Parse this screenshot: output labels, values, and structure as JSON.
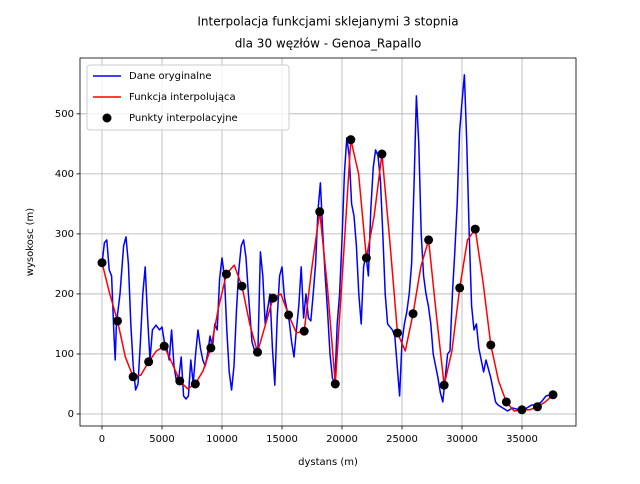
{
  "chart_data": {
    "type": "line",
    "title": [
      "Interpolacja funkcjami sklejanymi 3 stopnia",
      "dla 30 węzłów - Genoa_Rapallo"
    ],
    "x_label": "dystans (m)",
    "y_label": "wysokosc (m)",
    "xlim": [
      -1833,
      39500
    ],
    "ylim": [
      -20,
      593
    ],
    "xticks": [
      0,
      5000,
      10000,
      15000,
      20000,
      25000,
      30000,
      35000
    ],
    "yticks": [
      0,
      100,
      200,
      300,
      400,
      500
    ],
    "grid": true,
    "legend": "upper left",
    "series": [
      {
        "name": "Dane oryginalne",
        "color": "#0000ff",
        "style": "line",
        "x": [
          0,
          200,
          400,
          600,
          800,
          1000,
          1100,
          1200,
          1500,
          1800,
          2000,
          2200,
          2400,
          2600,
          2800,
          3000,
          3200,
          3400,
          3600,
          3800,
          4000,
          4200,
          4500,
          4800,
          5000,
          5200,
          5400,
          5600,
          5800,
          6000,
          6200,
          6400,
          6600,
          6800,
          7000,
          7200,
          7400,
          7600,
          7800,
          8000,
          8200,
          8400,
          8600,
          8800,
          9000,
          9200,
          9400,
          9600,
          9800,
          10000,
          10200,
          10400,
          10600,
          10800,
          11000,
          11200,
          11400,
          11600,
          11800,
          12000,
          12200,
          12500,
          12800,
          13000,
          13200,
          13400,
          13600,
          13800,
          14000,
          14200,
          14400,
          14600,
          14800,
          15000,
          15200,
          15400,
          15600,
          15800,
          16000,
          16200,
          16400,
          16600,
          16800,
          17000,
          17200,
          17400,
          17600,
          17800,
          18000,
          18200,
          18400,
          18600,
          18800,
          19000,
          19200,
          19400,
          19600,
          19800,
          20000,
          20200,
          20400,
          20600,
          20800,
          21000,
          21200,
          21400,
          21600,
          21800,
          22000,
          22200,
          22400,
          22600,
          22800,
          23000,
          23200,
          23400,
          23600,
          23800,
          24000,
          24200,
          24400,
          24600,
          24800,
          25000,
          25200,
          25400,
          25600,
          25800,
          26000,
          26200,
          26400,
          26600,
          26800,
          27000,
          27200,
          27400,
          27600,
          27800,
          28000,
          28200,
          28400,
          28600,
          28800,
          29000,
          29200,
          29400,
          29600,
          29800,
          30000,
          30200,
          30400,
          30600,
          30800,
          31000,
          31200,
          31400,
          31600,
          31800,
          32000,
          32200,
          32400,
          32600,
          32800,
          33000,
          33400,
          33800,
          34200,
          34600,
          35000,
          35400,
          35800,
          36200,
          36600,
          37000,
          37400,
          37600
        ],
        "values": [
          250,
          285,
          290,
          240,
          230,
          130,
          90,
          150,
          200,
          280,
          295,
          250,
          150,
          80,
          40,
          50,
          120,
          200,
          245,
          160,
          90,
          140,
          148,
          140,
          145,
          120,
          110,
          90,
          140,
          80,
          55,
          60,
          95,
          30,
          25,
          30,
          90,
          50,
          100,
          140,
          110,
          90,
          80,
          100,
          130,
          110,
          150,
          140,
          225,
          260,
          230,
          140,
          70,
          40,
          80,
          170,
          240,
          280,
          290,
          260,
          200,
          120,
          100,
          110,
          270,
          230,
          150,
          175,
          200,
          110,
          48,
          160,
          230,
          245,
          195,
          175,
          155,
          120,
          95,
          140,
          180,
          245,
          160,
          200,
          160,
          155,
          200,
          250,
          340,
          385,
          300,
          230,
          170,
          100,
          60,
          50,
          150,
          200,
          290,
          400,
          460,
          430,
          350,
          330,
          280,
          200,
          150,
          245,
          265,
          230,
          340,
          410,
          440,
          430,
          390,
          300,
          200,
          150,
          145,
          140,
          130,
          80,
          30,
          120,
          150,
          170,
          200,
          250,
          380,
          530,
          450,
          300,
          230,
          200,
          180,
          150,
          100,
          80,
          60,
          35,
          20,
          60,
          100,
          105,
          200,
          270,
          350,
          470,
          520,
          565,
          450,
          300,
          180,
          140,
          150,
          110,
          90,
          70,
          90,
          75,
          60,
          40,
          20,
          15,
          10,
          5,
          10,
          8,
          5,
          10,
          15,
          15,
          20,
          30,
          32,
          30
        ]
      },
      {
        "name": "Funkcja interpolująca",
        "color": "#ff0000",
        "style": "line",
        "x": [
          0,
          648,
          1296,
          1944,
          2592,
          3240,
          3888,
          4536,
          5184,
          5832,
          6480,
          7128,
          7776,
          8424,
          9072,
          9720,
          10368,
          11016,
          11664,
          12312,
          12960,
          13608,
          14256,
          14904,
          15552,
          16200,
          16848,
          17496,
          18144,
          18792,
          19440,
          20088,
          20736,
          21384,
          22032,
          22680,
          23328,
          23976,
          24624,
          25272,
          25920,
          26568,
          27216,
          27864,
          28512,
          29160,
          29808,
          30456,
          31104,
          31752,
          32400,
          33048,
          33696,
          34344,
          34992,
          35640,
          36288,
          36936,
          37584
        ],
        "values": [
          252,
          200,
          155,
          95,
          62,
          65,
          87,
          105,
          113,
          85,
          55,
          42,
          50,
          72,
          110,
          178,
          233,
          248,
          213,
          150,
          103,
          148,
          193,
          200,
          165,
          135,
          138,
          245,
          337,
          210,
          50,
          250,
          457,
          400,
          260,
          330,
          433,
          290,
          135,
          105,
          167,
          245,
          290,
          165,
          48,
          105,
          210,
          290,
          308,
          220,
          115,
          55,
          20,
          5,
          7,
          7,
          12,
          20,
          32
        ]
      },
      {
        "name": "Punkty interpolacyjne",
        "color": "#000000",
        "style": "marker",
        "x": [
          0,
          1296,
          2592,
          3888,
          5184,
          6480,
          7776,
          9072,
          10368,
          11664,
          12960,
          14256,
          15552,
          16848,
          18144,
          19440,
          20736,
          22032,
          23328,
          24624,
          25920,
          27216,
          28512,
          29808,
          31104,
          32400,
          33696,
          34992,
          36288,
          37584
        ],
        "values": [
          252,
          155,
          62,
          87,
          113,
          55,
          50,
          110,
          233,
          213,
          103,
          193,
          165,
          138,
          337,
          50,
          457,
          260,
          433,
          135,
          167,
          290,
          48,
          210,
          308,
          115,
          20,
          7,
          12,
          32
        ]
      }
    ]
  }
}
